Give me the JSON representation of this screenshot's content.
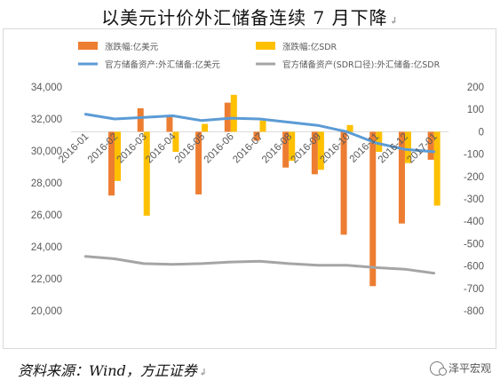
{
  "title": "以美元计价外汇储备连续 7 月下降",
  "title_mark": "↲",
  "source": "资料来源：Wind，方正证券",
  "source_mark": "↲",
  "watermark": "泽平宏观",
  "colors": {
    "bar_usd": "#ED7D31",
    "bar_sdr": "#FFC000",
    "line_usd": "#5B9BD5",
    "line_sdr": "#A5A5A5",
    "axis_text": "#595959",
    "grid": "#d9d9d9"
  },
  "chart_data": {
    "type": "bar+line",
    "title": "以美元计价外汇储备连续 7 月下降",
    "categories": [
      "2016-01",
      "2016-02",
      "2016-03",
      "2016-04",
      "2016-05",
      "2016-06",
      "2016-07",
      "2016-08",
      "2016-09",
      "2016-10",
      "2016-11",
      "2016-12",
      "2017-01"
    ],
    "left_axis": {
      "min": 20000,
      "max": 34000,
      "ticks": [
        "20,000",
        "22,000",
        "24,000",
        "26,000",
        "28,000",
        "30,000",
        "32,000",
        "34,000"
      ]
    },
    "right_axis": {
      "min": -800,
      "max": 200,
      "ticks": [
        "200",
        "100",
        "0",
        "-100",
        "-200",
        "-300",
        "-400",
        "-500",
        "-600",
        "-700",
        "-800"
      ]
    },
    "legend_position": "top",
    "series": [
      {
        "name": "涨跌幅:亿美元",
        "type": "bar",
        "axis": "right",
        "values": [
          0,
          -285,
          105,
          75,
          -280,
          130,
          -40,
          -160,
          -190,
          -460,
          -690,
          -410,
          -125
        ]
      },
      {
        "name": "涨跌幅:亿SDR",
        "type": "bar",
        "axis": "right",
        "values": [
          0,
          -220,
          -375,
          -90,
          35,
          165,
          50,
          -130,
          -170,
          30,
          -90,
          -140,
          -330
        ]
      },
      {
        "name": "官方储备资产:外汇储备:亿美元",
        "type": "line",
        "axis": "left",
        "values": [
          32300,
          32000,
          32100,
          32200,
          31900,
          32050,
          32000,
          31800,
          31600,
          31200,
          30500,
          30100,
          29950
        ]
      },
      {
        "name": "官方储备资产(SDR口径):外汇储备:亿SDR",
        "type": "line",
        "axis": "left",
        "values": [
          23400,
          23250,
          22950,
          22900,
          22950,
          23050,
          23100,
          22950,
          22850,
          22850,
          22700,
          22600,
          22350
        ]
      }
    ]
  }
}
